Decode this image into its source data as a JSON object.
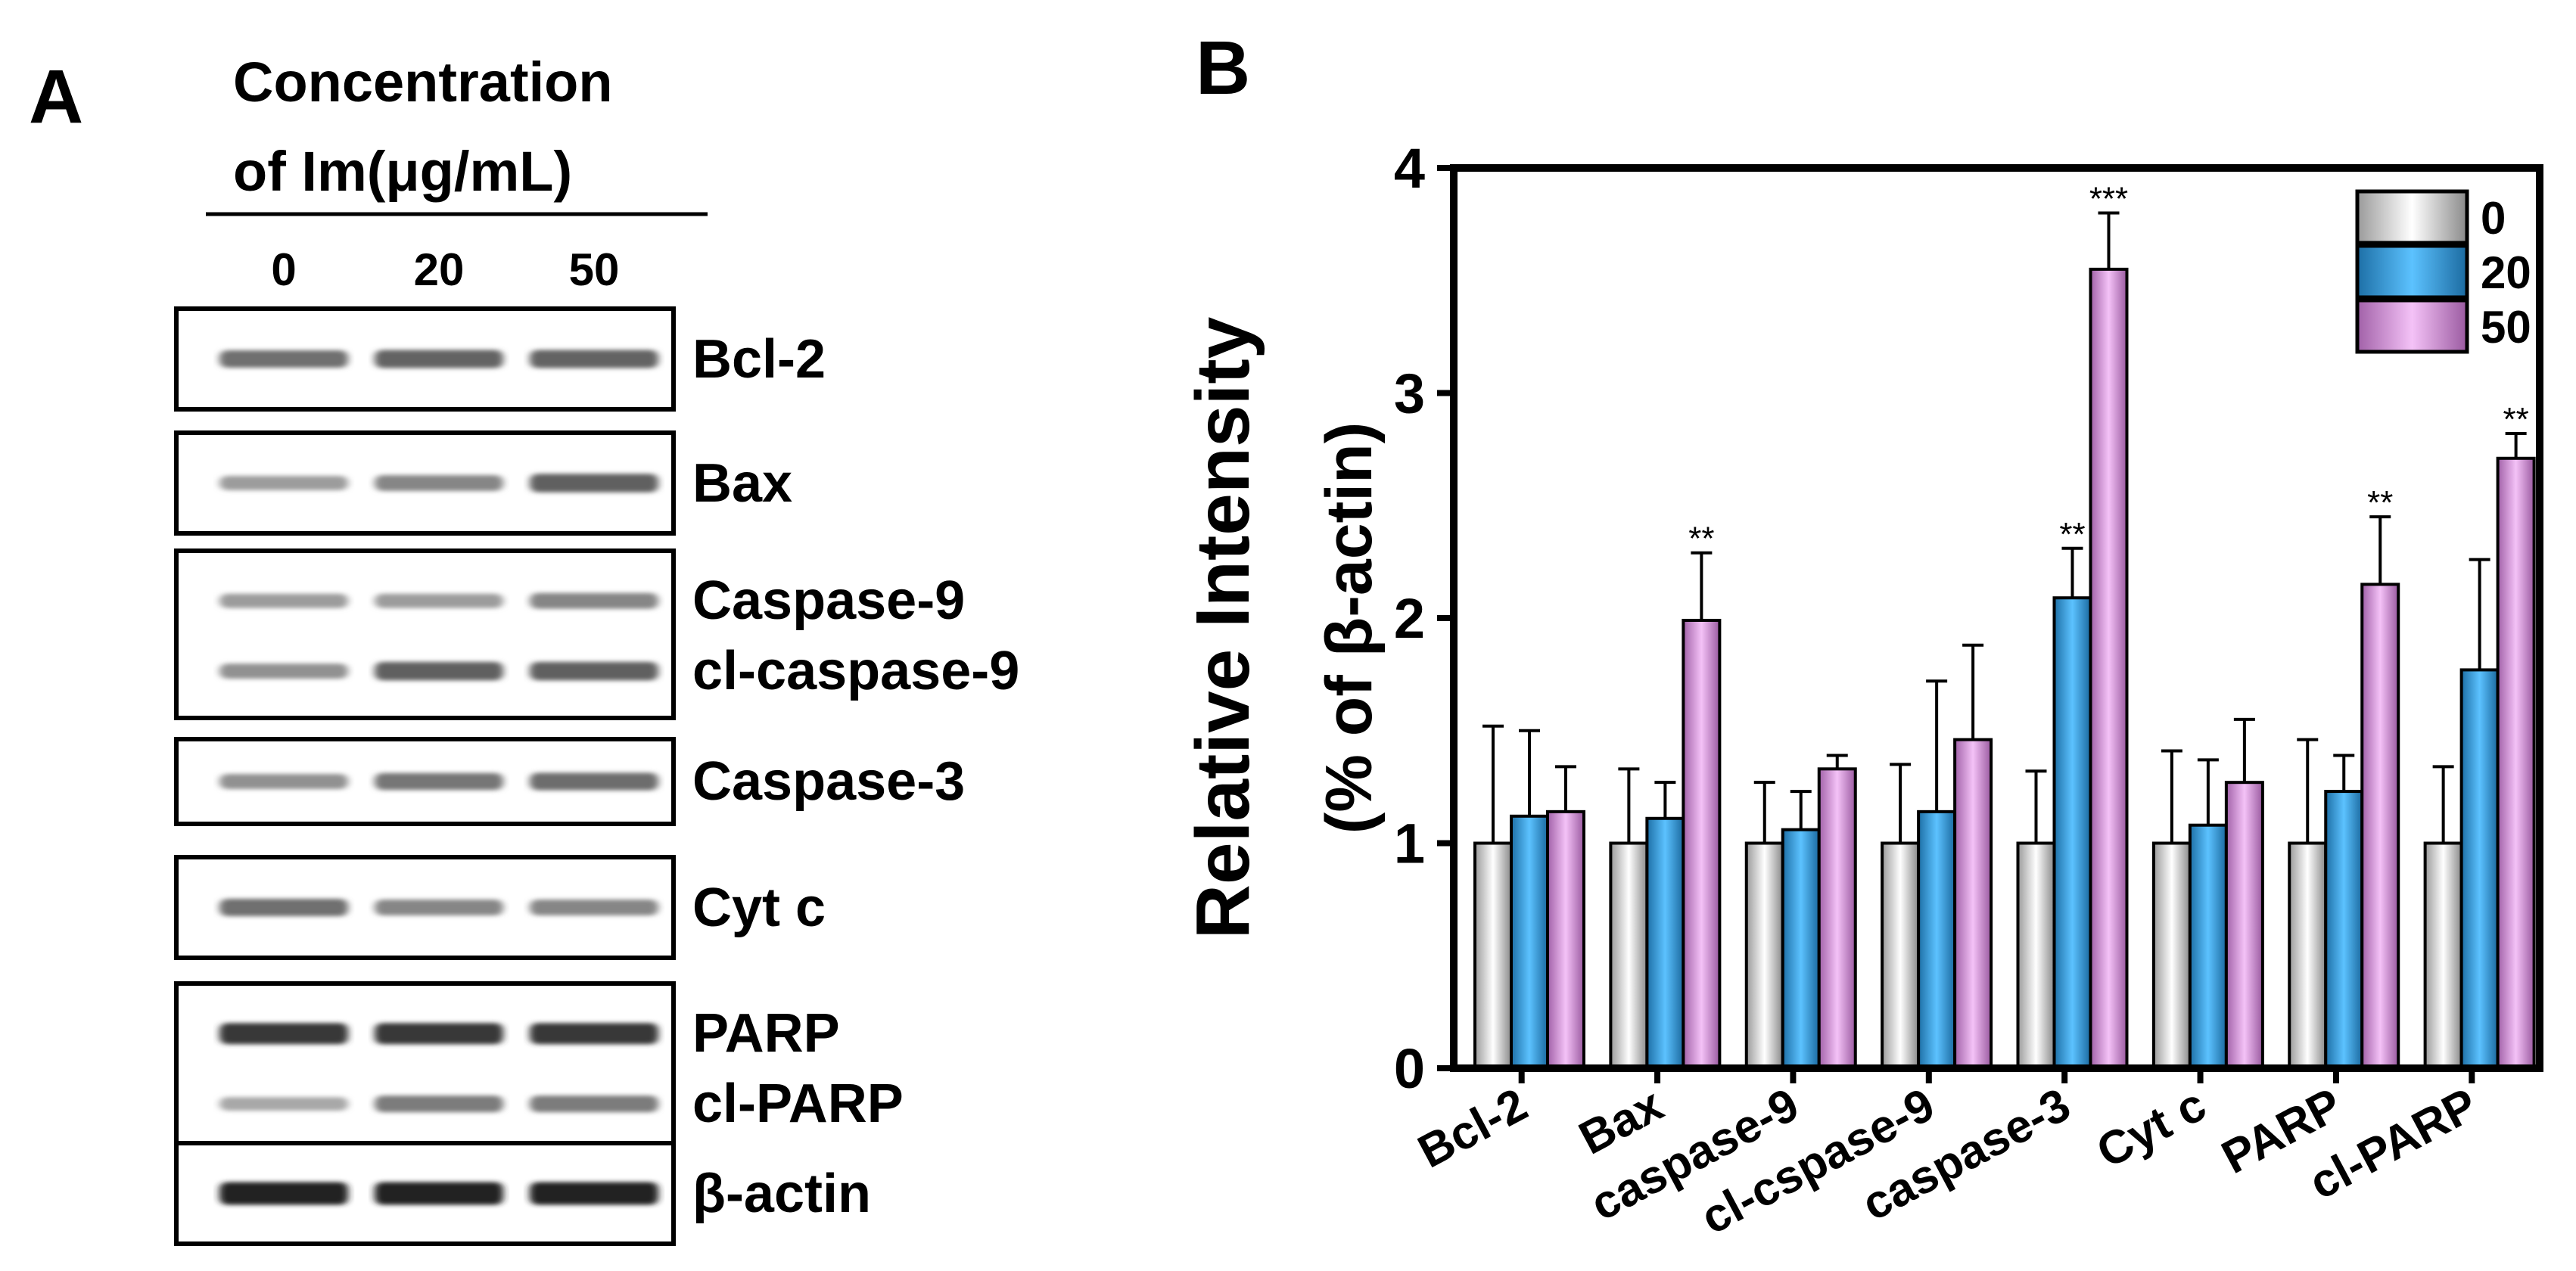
{
  "panel_a": {
    "letter": "A",
    "header_line1": "Concentration",
    "header_line2": "of Im(μg/mL)",
    "lanes": [
      "0",
      "20",
      "50"
    ],
    "blots": [
      {
        "labels": [
          "Bcl-2"
        ],
        "intensities": [
          [
            0.55,
            0.6,
            0.6
          ]
        ]
      },
      {
        "labels": [
          "Bax"
        ],
        "intensities": [
          [
            0.35,
            0.45,
            0.62
          ]
        ]
      },
      {
        "labels": [
          "Caspase-9",
          "cl-caspase-9"
        ],
        "intensities": [
          [
            0.35,
            0.35,
            0.45
          ],
          [
            0.4,
            0.62,
            0.62
          ]
        ]
      },
      {
        "labels": [
          "Caspase-3"
        ],
        "intensities": [
          [
            0.4,
            0.52,
            0.56
          ]
        ]
      },
      {
        "labels": [
          "Cyt c"
        ],
        "intensities": [
          [
            0.55,
            0.45,
            0.45
          ]
        ]
      },
      {
        "labels": [
          "PARP",
          "cl-PARP"
        ],
        "intensities": [
          [
            0.8,
            0.8,
            0.8
          ],
          [
            0.3,
            0.5,
            0.5
          ]
        ]
      },
      {
        "labels": [
          "β-actin"
        ],
        "intensities": [
          [
            0.9,
            0.9,
            0.9
          ]
        ]
      }
    ]
  },
  "chart_data": {
    "type": "bar",
    "panel_letter": "B",
    "ylabel_line1": "Relative Intensity",
    "ylabel_line2": "(% of β-actin)",
    "ylim": [
      0,
      4
    ],
    "yticks": [
      "0",
      "1",
      "2",
      "3",
      "4"
    ],
    "categories": [
      "Bcl-2",
      "Bax",
      "caspase-9",
      "cl-cspase-9",
      "caspase-3",
      "Cyt c",
      "PARP",
      "cl-PARP"
    ],
    "series": [
      {
        "name": "0",
        "color": "#e8e8e8",
        "values": [
          1.0,
          1.0,
          1.0,
          1.0,
          1.0,
          1.0,
          1.0,
          1.0
        ],
        "errors": [
          0.52,
          0.33,
          0.27,
          0.35,
          0.32,
          0.41,
          0.46,
          0.34
        ]
      },
      {
        "name": "20",
        "color": "#3aa7e8",
        "values": [
          1.12,
          1.11,
          1.06,
          1.14,
          2.09,
          1.08,
          1.23,
          1.77
        ],
        "errors": [
          0.38,
          0.16,
          0.17,
          0.58,
          0.22,
          0.29,
          0.16,
          0.49
        ]
      },
      {
        "name": "50",
        "color": "#e39ee8",
        "values": [
          1.14,
          1.99,
          1.33,
          1.46,
          3.55,
          1.27,
          2.15,
          2.71
        ],
        "errors": [
          0.2,
          0.3,
          0.06,
          0.42,
          0.25,
          0.28,
          0.3,
          0.11
        ]
      }
    ],
    "significance": [
      {
        "category": "Bax",
        "series": "50",
        "label": "**"
      },
      {
        "category": "caspase-3",
        "series": "20",
        "label": "**"
      },
      {
        "category": "caspase-3",
        "series": "50",
        "label": "***"
      },
      {
        "category": "PARP",
        "series": "50",
        "label": "**"
      },
      {
        "category": "cl-PARP",
        "series": "50",
        "label": "**"
      }
    ],
    "legend_position": "top-right",
    "grid": false
  }
}
